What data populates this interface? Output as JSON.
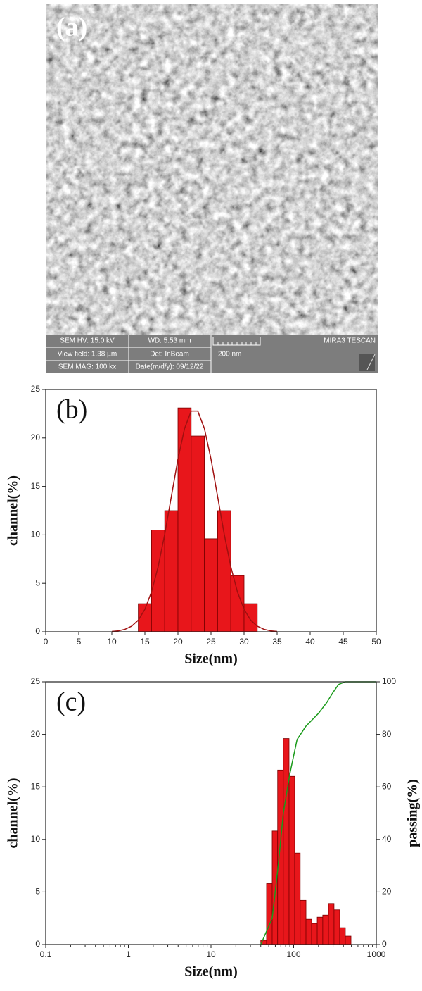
{
  "panel_a": {
    "label": "(a)",
    "info": [
      [
        "SEM HV: 15.0 kV",
        "WD: 5.53 mm"
      ],
      [
        "View field: 1.38 µm",
        "Det: InBeam"
      ],
      [
        "SEM MAG: 100 kx",
        "Date(m/d/y): 09/12/22"
      ]
    ],
    "scale_label": "200 nm",
    "brand": "MIRA3 TESCAN"
  },
  "chart_data": [
    {
      "type": "histogram",
      "annotation": "(b)",
      "x_label": "Size(nm)",
      "y_label": "channel(%)",
      "xlim": [
        0,
        50
      ],
      "xticks": [
        0,
        5,
        10,
        15,
        20,
        25,
        30,
        35,
        40,
        45,
        50
      ],
      "ylim": [
        0,
        25
      ],
      "yticks": [
        0,
        5,
        10,
        15,
        20,
        25
      ],
      "series": [
        {
          "type": "bar",
          "color": "#e8161b",
          "bins": [
            14,
            16,
            18,
            20,
            22,
            24,
            26,
            28,
            30,
            32
          ],
          "values": [
            2.9,
            10.5,
            12.5,
            23.1,
            20.2,
            9.6,
            12.5,
            5.8,
            2.9
          ]
        },
        {
          "type": "line",
          "color": "#a01010",
          "x": [
            10,
            11,
            12,
            13,
            14,
            15,
            16,
            17,
            18,
            19,
            20,
            21,
            22,
            23,
            24,
            25,
            26,
            27,
            28,
            29,
            30,
            31,
            32,
            33,
            34,
            35
          ],
          "values": [
            0.04,
            0.1,
            0.26,
            0.58,
            1.2,
            2.32,
            4.11,
            6.7,
            10.07,
            13.95,
            17.82,
            20.98,
            22.77,
            22.77,
            20.98,
            17.82,
            13.95,
            10.07,
            6.7,
            4.11,
            2.32,
            1.2,
            0.58,
            0.26,
            0.1,
            0.04
          ]
        }
      ]
    },
    {
      "type": "histogram",
      "annotation": "(c)",
      "x_label": "Size(nm)",
      "y_label": "channel(%)",
      "y2_label": "passing(%)",
      "xlog": true,
      "xlim": [
        0.1,
        1000
      ],
      "xticks": [
        0.1,
        1,
        10,
        100,
        1000
      ],
      "ylim": [
        0,
        25
      ],
      "yticks": [
        0,
        5,
        10,
        15,
        20,
        25
      ],
      "y2lim": [
        0,
        100
      ],
      "y2ticks": [
        0,
        20,
        40,
        60,
        80,
        100
      ],
      "series": [
        {
          "type": "bar",
          "color": "#e8161b",
          "bins": [
            40,
            47,
            55,
            64,
            75,
            88,
            103,
            120,
            141,
            165,
            193,
            225,
            264,
            308,
            361,
            422,
            494
          ],
          "values": [
            0.4,
            5.8,
            10.8,
            16.6,
            19.6,
            16.0,
            8.7,
            4.2,
            2.4,
            2.0,
            2.6,
            2.8,
            3.9,
            3.3,
            1.6,
            0.8
          ]
        },
        {
          "type": "line",
          "color": "#1a9a1a",
          "axis": "y2",
          "x": [
            40,
            55,
            65,
            75,
            90,
            110,
            140,
            200,
            250,
            300,
            350,
            420,
            1000
          ],
          "values": [
            0,
            10,
            30,
            50,
            65,
            78,
            83,
            88,
            92,
            96,
            99,
            100,
            100
          ]
        }
      ]
    }
  ]
}
